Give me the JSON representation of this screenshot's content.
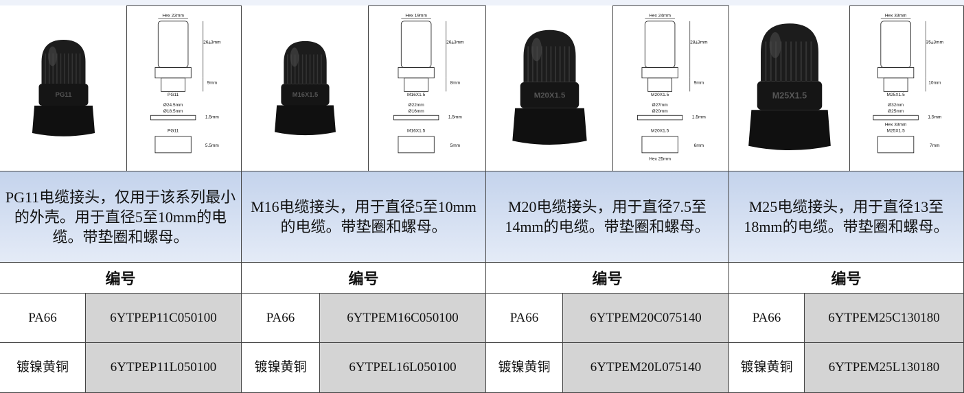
{
  "products": [
    {
      "photo_label": "PG11",
      "dims": [
        "Hex 22mm",
        "26±3mm",
        "9mm",
        "PG11",
        "1.5mm",
        "Ø24.5mm",
        "Ø18.5mm",
        "PG11",
        "5.5mm"
      ],
      "description": "PG11电缆接头，仅用于该系列最小的外壳。用于直径5至10mm的电缆。带垫圈和螺母。",
      "header": "编号",
      "rows": [
        {
          "material": "PA66",
          "code": "6YTPEP11C050100"
        },
        {
          "material": "镀镍黄铜",
          "code": "6YTPEP11L050100"
        }
      ]
    },
    {
      "photo_label": "M16X1.5",
      "dims": [
        "Hex 19mm",
        "26±3mm",
        "8mm",
        "M16X1.5",
        "1.5mm",
        "Ø22mm",
        "Ø16mm",
        "M16X1.5",
        "5mm"
      ],
      "description": "M16电缆接头，用于直径5至10mm的电缆。带垫圈和螺母。",
      "header": "编号",
      "rows": [
        {
          "material": "PA66",
          "code": "6YTPEM16C050100"
        },
        {
          "material": "镀镍黄铜",
          "code": "6YTPEL16L050100"
        }
      ]
    },
    {
      "photo_label": "M20X1.5",
      "dims": [
        "Hex 24mm",
        "28±3mm",
        "9mm",
        "M20X1.5",
        "1.5mm",
        "Ø27mm",
        "Ø20mm",
        "M20X1.5",
        "6mm",
        "Hex 25mm"
      ],
      "description": "M20电缆接头，用于直径7.5至14mm的电缆。带垫圈和螺母。",
      "header": "编号",
      "rows": [
        {
          "material": "PA66",
          "code": "6YTPEM20C075140"
        },
        {
          "material": "镀镍黄铜",
          "code": "6YTPEM20L075140"
        }
      ]
    },
    {
      "photo_label": "M25X1.5",
      "dims": [
        "Hex 33mm",
        "35±3mm",
        "10mm",
        "M25X1.5",
        "1.5mm",
        "Ø32mm",
        "Ø25mm",
        "Hex 33mm",
        "M25X1.5",
        "7mm"
      ],
      "description": "M25电缆接头，用于直径13至18mm的电缆。带垫圈和螺母。",
      "header": "编号",
      "rows": [
        {
          "material": "PA66",
          "code": "6YTPEM25C130180"
        },
        {
          "material": "镀镍黄铜",
          "code": "6YTPEM25L130180"
        }
      ]
    }
  ]
}
